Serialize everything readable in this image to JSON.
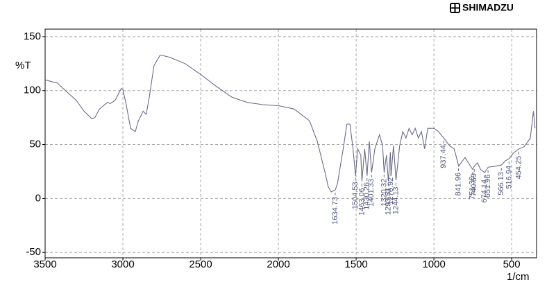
{
  "chart_data": {
    "type": "line",
    "brand": "SHIMADZU",
    "y_label": "%T",
    "x_label": "1/cm",
    "x": [
      3500,
      3450,
      3420,
      3400,
      3300,
      3250,
      3200,
      3180,
      3150,
      3100,
      3080,
      3050,
      3010,
      3000,
      2980,
      2950,
      2920,
      2900,
      2870,
      2850,
      2830,
      2800,
      2760,
      2700,
      2600,
      2500,
      2400,
      2300,
      2200,
      2100,
      2000,
      1900,
      1800,
      1750,
      1700,
      1680,
      1660,
      1634,
      1620,
      1580,
      1560,
      1540,
      1520,
      1504,
      1490,
      1470,
      1463,
      1445,
      1430,
      1415,
      1401,
      1380,
      1350,
      1330,
      1320,
      1305,
      1293,
      1280,
      1276,
      1260,
      1244,
      1220,
      1200,
      1180,
      1160,
      1140,
      1120,
      1100,
      1080,
      1060,
      1040,
      1000,
      970,
      937,
      900,
      870,
      841,
      800,
      751,
      740,
      720,
      700,
      674,
      651,
      600,
      566,
      540,
      516,
      490,
      454,
      420,
      380,
      360,
      350
    ],
    "values": [
      110,
      108,
      107,
      104,
      91,
      81,
      74,
      75,
      83,
      89,
      88,
      91,
      102,
      101,
      88,
      65,
      62,
      72,
      81,
      78,
      94,
      123,
      133,
      131,
      125,
      115,
      104,
      94,
      89,
      87,
      86,
      83,
      72,
      53,
      24,
      11,
      6,
      8,
      14,
      49,
      69,
      69,
      46,
      21,
      46,
      40,
      16,
      46,
      21,
      53,
      24,
      46,
      59,
      49,
      24,
      40,
      16,
      43,
      21,
      49,
      17,
      49,
      62,
      56,
      65,
      59,
      65,
      56,
      62,
      46,
      65,
      65,
      62,
      56,
      49,
      46,
      30,
      38,
      27,
      30,
      33,
      27,
      24,
      29,
      30,
      31,
      35,
      37,
      42,
      46,
      48,
      56,
      81,
      65
    ],
    "color": "#6a6a8a",
    "xlim": [
      3500,
      340
    ],
    "ylim": [
      -55,
      157
    ],
    "xticks": [
      3500,
      3000,
      2500,
      2000,
      1500,
      1000,
      500
    ],
    "yticks": [
      -50,
      0,
      50,
      100,
      150
    ],
    "grid": true,
    "peaks": [
      1634.73,
      1504.53,
      1463.06,
      1430.26,
      1401.33,
      1320.32,
      1293.31,
      1276.92,
      1244.13,
      937.44,
      841.96,
      {
        "value": 751.3,
        "label": "751.30"
      },
      740.69,
      674.14,
      651.96,
      566.13,
      516.94,
      454.25
    ]
  }
}
